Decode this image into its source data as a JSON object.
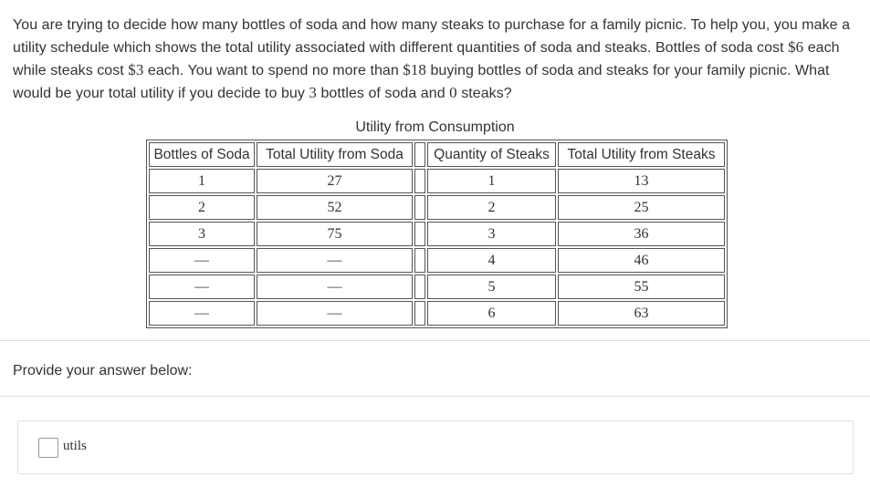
{
  "question": {
    "text_parts": [
      "You are trying to decide how many bottles of soda and how many steaks to purchase for a family picnic. To help you, you make a utility schedule which shows the total utility associated with different quantities of soda and steaks. Bottles of soda cost ",
      "$6",
      " each while steaks cost ",
      "$3",
      " each. You want to spend no more than ",
      "$18",
      " buying bottles of soda and steaks for your family picnic. What would be your total utility if you decide to buy ",
      "3",
      " bottles of soda and ",
      "0",
      " steaks?"
    ]
  },
  "table": {
    "caption": "Utility from Consumption",
    "headers": [
      "Bottles of Soda",
      "Total Utility from Soda",
      "Quantity of Steaks",
      "Total Utility from Steaks"
    ],
    "rows": [
      [
        "1",
        "27",
        "1",
        "13"
      ],
      [
        "2",
        "52",
        "2",
        "25"
      ],
      [
        "3",
        "75",
        "3",
        "36"
      ],
      [
        "—",
        "—",
        "4",
        "46"
      ],
      [
        "—",
        "—",
        "5",
        "55"
      ],
      [
        "—",
        "—",
        "6",
        "63"
      ]
    ]
  },
  "answer": {
    "prompt": "Provide your answer below:",
    "input_value": "",
    "unit": "utils"
  }
}
